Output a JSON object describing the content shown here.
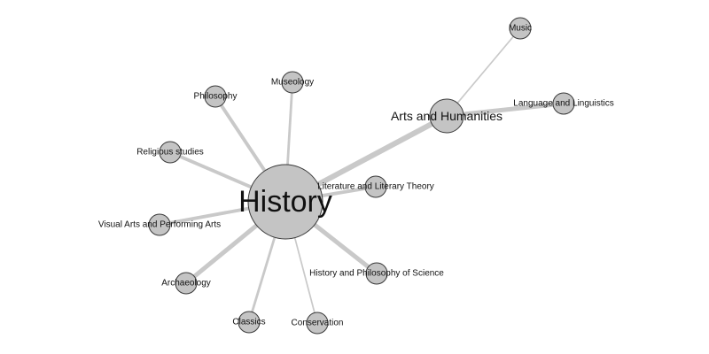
{
  "diagram": {
    "type": "network",
    "colors": {
      "node_fill": "#c4c4c4",
      "node_stroke": "#3a3a3a",
      "edge": "#c9c9c9",
      "label": "#111111"
    },
    "nodes": [
      {
        "id": "history",
        "label": "History"
      },
      {
        "id": "arts-and-humanities",
        "label": "Arts and Humanities"
      },
      {
        "id": "music",
        "label": "Music"
      },
      {
        "id": "language-and-linguistics",
        "label": "Language and Linguistics"
      },
      {
        "id": "museology",
        "label": "Museology"
      },
      {
        "id": "philosophy",
        "label": "Philosophy"
      },
      {
        "id": "religious-studies",
        "label": "Religious studies"
      },
      {
        "id": "literature-and-literary-theory",
        "label": "Literature and Literary Theory"
      },
      {
        "id": "visual-arts-and-performing-arts",
        "label": "Visual Arts and Performing Arts"
      },
      {
        "id": "history-and-philosophy-of-science",
        "label": "History and Philosophy of Science"
      },
      {
        "id": "archaeology",
        "label": "Archaeology"
      },
      {
        "id": "classics",
        "label": "Classics"
      },
      {
        "id": "conservation",
        "label": "Conservation"
      }
    ],
    "edges": [
      {
        "source": "history",
        "target": "arts-and-humanities",
        "weight": 5
      },
      {
        "source": "arts-and-humanities",
        "target": "music",
        "weight": 1
      },
      {
        "source": "arts-and-humanities",
        "target": "language-and-linguistics",
        "weight": 4
      },
      {
        "source": "history",
        "target": "museology",
        "weight": 2
      },
      {
        "source": "history",
        "target": "philosophy",
        "weight": 3
      },
      {
        "source": "history",
        "target": "religious-studies",
        "weight": 3
      },
      {
        "source": "history",
        "target": "literature-and-literary-theory",
        "weight": 3
      },
      {
        "source": "history",
        "target": "visual-arts-and-performing-arts",
        "weight": 3
      },
      {
        "source": "history",
        "target": "history-and-philosophy-of-science",
        "weight": 4
      },
      {
        "source": "history",
        "target": "archaeology",
        "weight": 4
      },
      {
        "source": "history",
        "target": "classics",
        "weight": 2
      },
      {
        "source": "history",
        "target": "conservation",
        "weight": 1
      }
    ]
  }
}
